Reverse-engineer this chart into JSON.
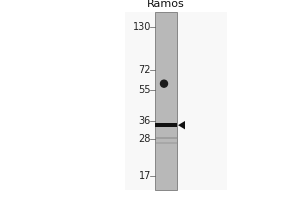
{
  "fig_width": 3.0,
  "fig_height": 2.0,
  "dpi": 100,
  "mw_markers": [
    130,
    72,
    55,
    36,
    28,
    17
  ],
  "col_label": "Ramos",
  "col_label_fontsize": 8,
  "mw_fontsize": 7,
  "band_dot_mw": 60,
  "band_dot_color": "#1a1a1a",
  "band_main_mw": 34,
  "band_main_color": "#111111",
  "band_faint1_mw": 28.5,
  "band_faint2_mw": 26.5,
  "band_faint_color": "#888888",
  "arrow_color": "#111111",
  "lane_gray": 0.72,
  "bg_color": "#ffffff",
  "panel_bg": "#f5f5f5",
  "border_color": "#888888"
}
